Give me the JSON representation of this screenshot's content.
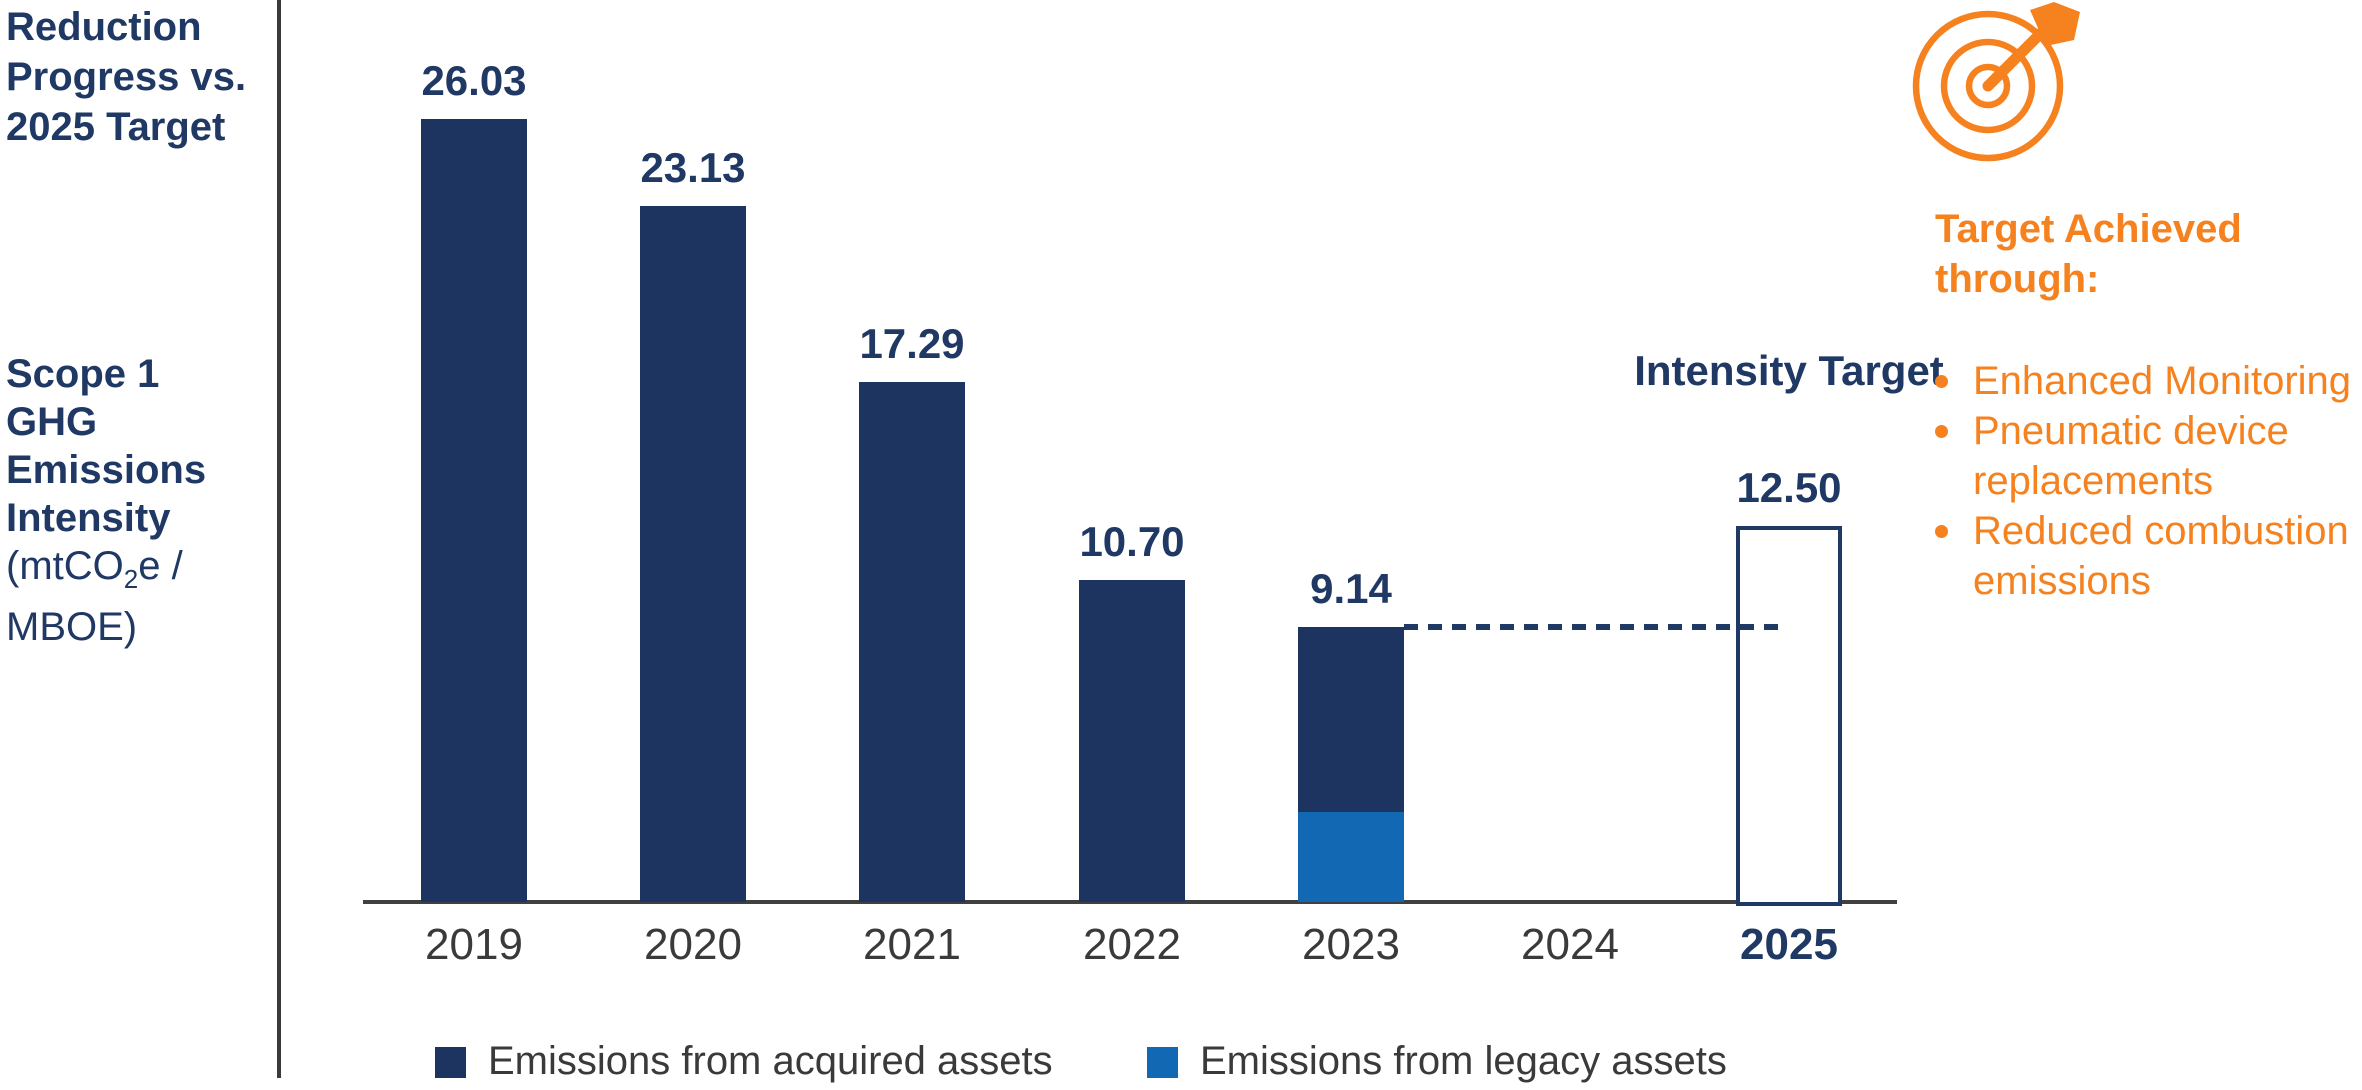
{
  "colors": {
    "navy": "#1E3460",
    "navy_text": "#1F3864",
    "blue": "#1368B4",
    "orange": "#F5821F",
    "gray_text": "#3A3A3A",
    "axis_gray": "#404040"
  },
  "left_panel": {
    "title": "Reduction Progress vs. 2025 Target",
    "axis_label_bold": "Scope 1 GHG Emissions Intensity",
    "unit_prefix": "(mtCO",
    "unit_sub": "2",
    "unit_suffix": "e / MBOE)"
  },
  "chart_data": {
    "type": "bar",
    "title": "Reduction Progress vs. 2025 Target",
    "ylabel": "Scope 1 GHG Emissions Intensity (mtCO2e / MBOE)",
    "categories": [
      "2019",
      "2020",
      "2021",
      "2022",
      "2023",
      "2024",
      "2025"
    ],
    "ylim": [
      0,
      28
    ],
    "grid": false,
    "legend_position": "bottom",
    "bars": [
      {
        "year": "2019",
        "total": 26.03,
        "label": "26.03",
        "segments": [
          {
            "series": "acquired",
            "value": 26.03
          }
        ]
      },
      {
        "year": "2020",
        "total": 23.13,
        "label": "23.13",
        "segments": [
          {
            "series": "acquired",
            "value": 23.13
          }
        ]
      },
      {
        "year": "2021",
        "total": 17.29,
        "label": "17.29",
        "segments": [
          {
            "series": "acquired",
            "value": 17.29
          }
        ]
      },
      {
        "year": "2022",
        "total": 10.7,
        "label": "10.70",
        "segments": [
          {
            "series": "acquired",
            "value": 10.7
          }
        ]
      },
      {
        "year": "2023",
        "total": 9.14,
        "label": "9.14",
        "segments": [
          {
            "series": "acquired",
            "value": 6.14
          },
          {
            "series": "legacy",
            "value": 3.0
          }
        ]
      }
    ],
    "target_bar": {
      "year": "2025",
      "value": 12.5,
      "label": "12.50",
      "annotation": "Intensity Target",
      "style": "outlined"
    },
    "dashed_reference_level": 9.14,
    "highlight_year": "2025",
    "series_colors": {
      "acquired": "#1E3460",
      "legacy": "#1368B4"
    },
    "legend": [
      {
        "series": "acquired",
        "label": "Emissions from acquired assets",
        "color": "#1E3460"
      },
      {
        "series": "legacy",
        "label": "Emissions from legacy assets",
        "color": "#1368B4"
      }
    ]
  },
  "right_panel": {
    "icon": "target-with-dart",
    "heading": "Target Achieved through:",
    "bullets": [
      "Enhanced Monitoring",
      "Pneumatic device replacements",
      "Reduced combustion emissions"
    ]
  }
}
